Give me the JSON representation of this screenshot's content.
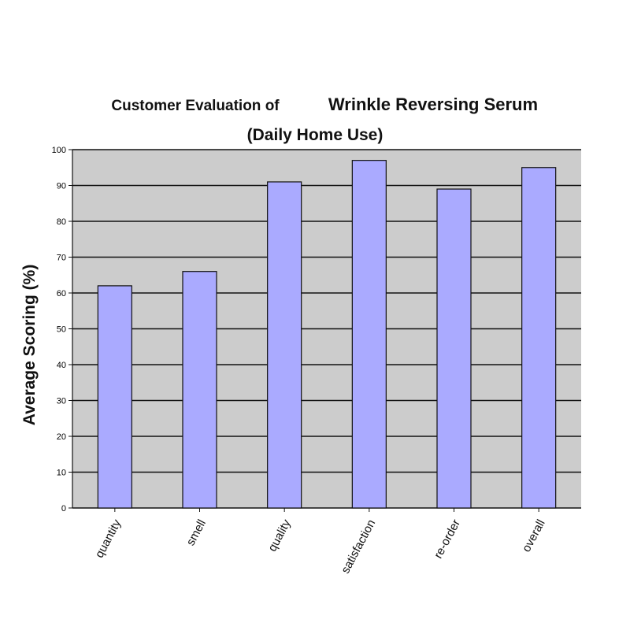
{
  "chart_data": {
    "type": "bar",
    "title_line1_part1": "Customer Evaluation of",
    "title_line1_part2": "Wrinkle Reversing Serum",
    "title_line2": "(Daily Home Use)",
    "ylabel": "Average Scoring (%)",
    "xlabel": "",
    "categories": [
      "quantity",
      "smell",
      "quality",
      "satisfaction",
      "re-order",
      "overall"
    ],
    "values": [
      62,
      66,
      91,
      97,
      89,
      95
    ],
    "ylim": [
      0,
      100
    ],
    "yticks": [
      0,
      10,
      20,
      30,
      40,
      50,
      60,
      70,
      80,
      90,
      100
    ],
    "grid": true,
    "legend": "none",
    "colors": {
      "bar_fill": "#aaaaff",
      "plot_background": "#cccccc",
      "gridline": "#111111"
    }
  }
}
